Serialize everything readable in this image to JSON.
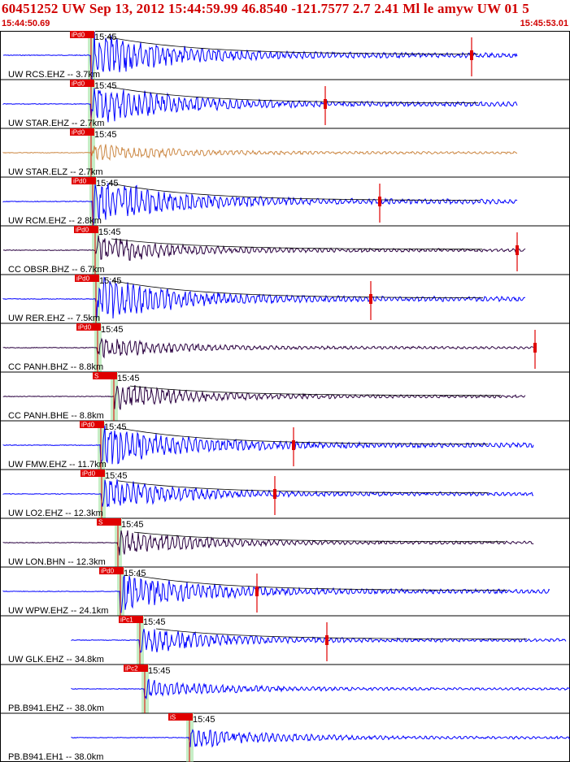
{
  "header": {
    "title": "60451252 UW Sep 13, 2012 15:44:59.99    46.8540 -121.7577  2.7 2.41 Ml le amyw UW 01   5",
    "start_time": "15:44:50.69",
    "end_time": "15:45:53.01"
  },
  "colors": {
    "blue": "#0000ff",
    "brown": "#cc8844",
    "dark": "#2a0040",
    "pick_red": "#e00000",
    "window_green": "#c6eec6"
  },
  "traces": [
    {
      "label": "UW RCS.EHZ -- 3.7km",
      "time": "15:45",
      "pick": "iPd0",
      "color": "blue",
      "p": 112,
      "amp": 1.0,
      "end": 636,
      "s": 580
    },
    {
      "label": "UW STAR.EHZ -- 2.7km",
      "time": "15:45",
      "pick": "iPd0",
      "color": "blue",
      "p": 112,
      "amp": 0.95,
      "end": 636,
      "s": 400
    },
    {
      "label": "UW STAR.ELZ -- 2.7km",
      "time": "15:45",
      "pick": "iPd0",
      "color": "brown",
      "p": 112,
      "amp": 0.4,
      "end": 636,
      "s": null
    },
    {
      "label": "UW RCM.EHZ -- 2.8km",
      "time": "15:45",
      "pick": "iPd0",
      "color": "blue",
      "p": 114,
      "amp": 1.0,
      "end": 636,
      "s": 467
    },
    {
      "label": "CC OBSR.BHZ -- 6.7km",
      "time": "15:45",
      "pick": "iPd0",
      "color": "dark",
      "p": 117,
      "amp": 0.6,
      "end": 646,
      "s": 636
    },
    {
      "label": "UW RER.EHZ -- 7.5km",
      "time": "15:45",
      "pick": "iPd0",
      "color": "blue",
      "p": 118,
      "amp": 1.0,
      "end": 646,
      "s": 456
    },
    {
      "label": "CC PANH.BHZ -- 8.8km",
      "time": "15:45",
      "pick": "iPd0",
      "color": "dark",
      "p": 120,
      "amp": 0.45,
      "end": 656,
      "s": 658
    },
    {
      "label": "CC PANH.BHE -- 8.8km",
      "time": "15:45",
      "pick": "S",
      "color": "dark",
      "p": 140,
      "amp": 0.55,
      "end": 646,
      "s": null
    },
    {
      "label": "UW FMW.EHZ -- 11.7km",
      "time": "15:45",
      "pick": "iPd0",
      "color": "blue",
      "p": 124,
      "amp": 0.95,
      "end": 656,
      "s": 361
    },
    {
      "label": "UW LO2.EHZ -- 12.3km",
      "time": "15:45",
      "pick": "iPd0",
      "color": "blue",
      "p": 125,
      "amp": 0.7,
      "end": 656,
      "s": 338
    },
    {
      "label": "UW LON.BHN -- 12.3km",
      "time": "15:45",
      "pick": "S",
      "color": "dark",
      "p": 145,
      "amp": 0.55,
      "end": 656,
      "s": null
    },
    {
      "label": "UW WPW.EHZ -- 24.1km",
      "time": "15:45",
      "pick": "iPd0",
      "color": "blue",
      "p": 148,
      "amp": 0.85,
      "end": 676,
      "s": 316
    },
    {
      "label": "UW GLK.EHZ -- 34.8km",
      "time": "15:45",
      "pick": "iPc1",
      "color": "blue",
      "p": 172,
      "amp": 0.6,
      "end": 696,
      "s": 402
    },
    {
      "label": "PB.B941.EHZ -- 38.0km",
      "time": "15:45",
      "pick": "iPc2",
      "color": "blue",
      "p": 178,
      "amp": 0.4,
      "end": 701,
      "s": null
    },
    {
      "label": "PB.B941.EH1 -- 38.0km",
      "time": "15:45",
      "pick": "iS",
      "color": "blue",
      "p": 233,
      "amp": 0.45,
      "end": 701,
      "s": null
    }
  ]
}
